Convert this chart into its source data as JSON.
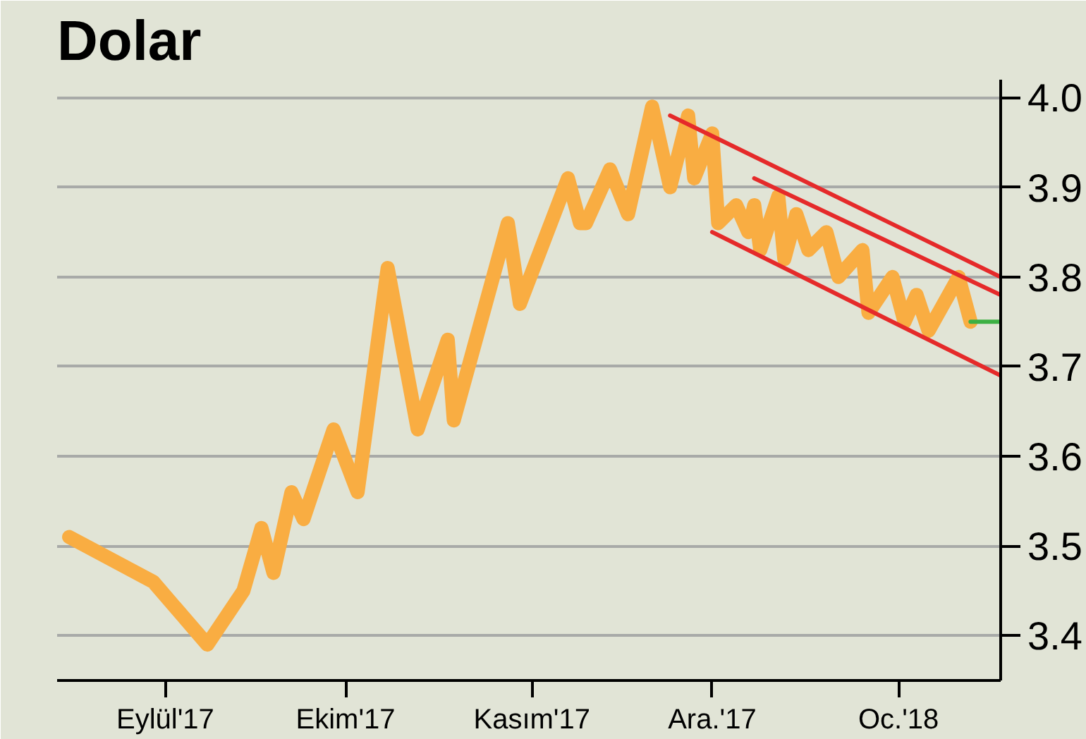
{
  "chart_data": {
    "type": "line",
    "title": "Dolar",
    "xlim": [
      "2017-08-14",
      "2018-01-18"
    ],
    "ylim": [
      3.35,
      4.02
    ],
    "xticks": [
      {
        "value": "2017-09-01",
        "label": "Eylül'17"
      },
      {
        "value": "2017-10-01",
        "label": "Ekim'17"
      },
      {
        "value": "2017-11-01",
        "label": "Kasım'17"
      },
      {
        "value": "2017-12-01",
        "label": "Ara.'17"
      },
      {
        "value": "2018-01-01",
        "label": "Oc.'18"
      }
    ],
    "yticks": [
      3.4,
      3.5,
      3.6,
      3.7,
      3.8,
      3.9,
      {
        "value": 4.0,
        "label": "4.0"
      }
    ],
    "grid": "y",
    "line_style": "solid",
    "series": [
      {
        "color": "#f9ad42",
        "x": [
          "2017-08-16",
          "2017-08-30",
          "2017-09-08",
          "2017-09-14",
          "2017-09-17",
          "2017-09-19",
          "2017-09-22",
          "2017-09-24",
          "2017-09-29",
          "2017-10-03",
          "2017-10-08",
          "2017-10-13",
          "2017-10-18",
          "2017-10-19",
          "2017-10-28",
          "2017-10-30",
          "2017-11-07",
          "2017-11-09",
          "2017-11-10",
          "2017-11-14",
          "2017-11-17",
          "2017-11-21",
          "2017-11-24",
          "2017-11-27",
          "2017-11-28",
          "2017-12-01",
          "2017-12-02",
          "2017-12-05",
          "2017-12-07",
          "2017-12-08",
          "2017-12-09",
          "2017-12-12",
          "2017-12-13",
          "2017-12-15",
          "2017-12-17",
          "2017-12-20",
          "2017-12-22",
          "2017-12-26",
          "2017-12-27",
          "2017-12-31",
          "2018-01-02",
          "2018-01-04",
          "2018-01-06",
          "2018-01-11",
          "2018-01-13"
        ],
        "values": [
          3.51,
          3.46,
          3.39,
          3.45,
          3.52,
          3.47,
          3.56,
          3.53,
          3.63,
          3.56,
          3.81,
          3.63,
          3.73,
          3.64,
          3.86,
          3.77,
          3.91,
          3.86,
          3.86,
          3.92,
          3.87,
          3.99,
          3.9,
          3.98,
          3.91,
          3.96,
          3.86,
          3.88,
          3.85,
          3.88,
          3.83,
          3.89,
          3.82,
          3.87,
          3.83,
          3.85,
          3.8,
          3.83,
          3.76,
          3.8,
          3.75,
          3.78,
          3.74,
          3.8,
          3.75
        ]
      },
      {
        "color": "#e52a2a",
        "x": [
          "2017-11-24",
          "2018-01-18"
        ],
        "values": [
          3.98,
          3.8
        ]
      },
      {
        "color": "#e52a2a",
        "x": [
          "2017-12-08",
          "2018-01-18"
        ],
        "values": [
          3.91,
          3.78
        ]
      },
      {
        "color": "#e52a2a",
        "x": [
          "2017-12-01",
          "2018-01-18"
        ],
        "values": [
          3.85,
          3.69
        ]
      },
      {
        "color": "#3cb043",
        "x": [
          "2018-01-13",
          "2018-01-18"
        ],
        "values": [
          3.75,
          3.75
        ]
      }
    ]
  }
}
